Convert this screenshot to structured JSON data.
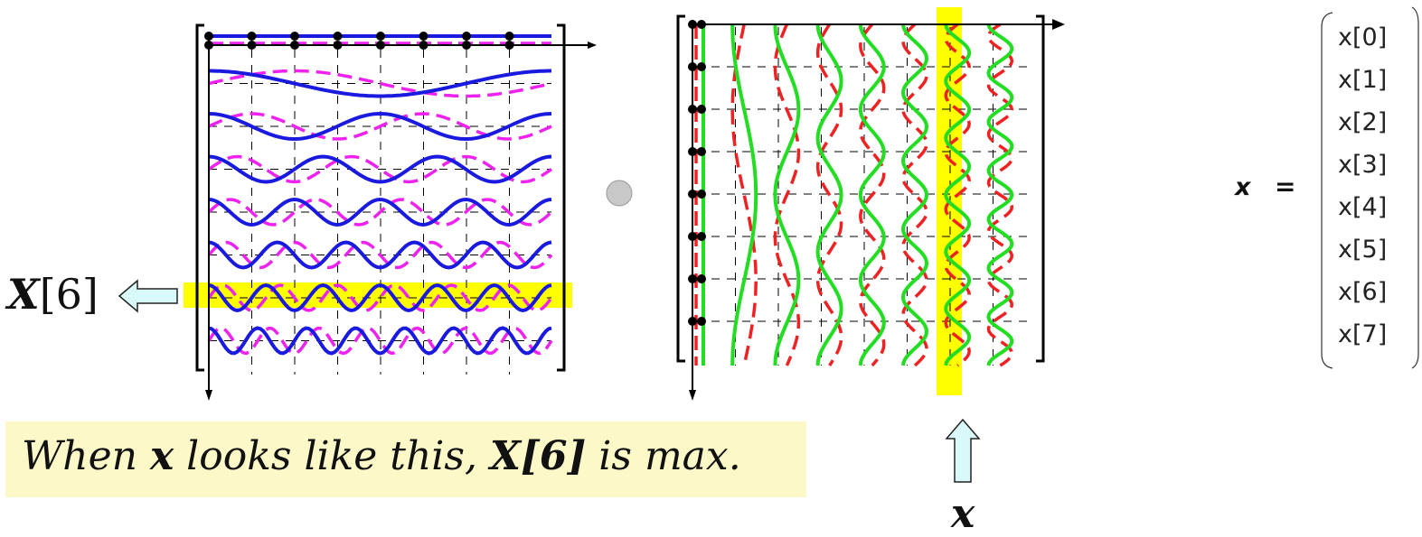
{
  "caption": {
    "prefix": "When ",
    "var": "x",
    "middle": " looks like this, ",
    "target": "X[6]",
    "suffix": " is max."
  },
  "output_label": {
    "var": "X",
    "index": "[6]"
  },
  "input_label": "x",
  "vector": {
    "name": "x",
    "equals": "=",
    "entries": [
      "x[0]",
      "x[1]",
      "x[2]",
      "x[3]",
      "x[4]",
      "x[5]",
      "x[6]",
      "x[7]"
    ]
  },
  "colors": {
    "basis_real": "#1a1adf",
    "basis_imag": "#ee22ee",
    "signal_solid": "#22dd22",
    "signal_dashed": "#ee2222",
    "highlight": "#ffff00",
    "arrow_fill": "#d8f8fa",
    "caption_bg": "#fcf8c8"
  },
  "dft_rows": 8,
  "highlighted_row": 6,
  "highlighted_column": 6
}
